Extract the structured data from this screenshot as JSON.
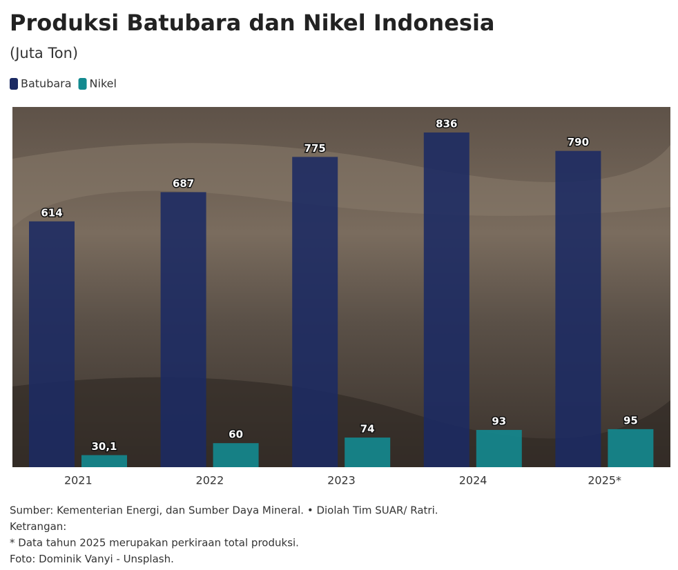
{
  "chart_data": {
    "type": "bar",
    "title": "Produksi Batubara dan Nikel Indonesia",
    "subtitle": "(Juta Ton)",
    "categories": [
      "2021",
      "2022",
      "2023",
      "2024",
      "2025*"
    ],
    "series": [
      {
        "name": "Batubara",
        "color": "#1b2a63",
        "values": [
          614,
          687,
          775,
          836,
          790
        ]
      },
      {
        "name": "Nikel",
        "color": "#138a90",
        "values": [
          30.1,
          60,
          74,
          93,
          95
        ],
        "value_labels": [
          "30,1",
          "60",
          "74",
          "93",
          "95"
        ]
      }
    ],
    "notes": [
      "Sumber: Kementerian Energi, dan Sumber Daya Mineral. • Diolah Tim SUAR/ Ratri.",
      "Ketrangan:",
      "* Data tahun 2025 merupakan perkiraan total produksi.",
      "Foto: Dominik Vanyi - Unsplash."
    ]
  }
}
